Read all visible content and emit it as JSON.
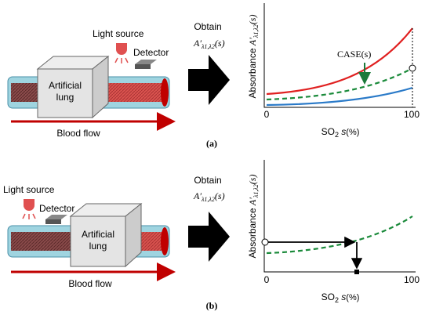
{
  "panels": [
    {
      "id": "(a)",
      "device": {
        "light_source": "Light source",
        "detector": "Detector",
        "lung": [
          "Artificial",
          "lung"
        ],
        "flow": "Blood flow"
      },
      "step": {
        "verb": "Obtain",
        "symbol": "A′",
        "subscript": "λ1,λ2",
        "arg": "(s)"
      },
      "plot": {
        "y_label": {
          "text": "Absorbance",
          "symbol": "A′",
          "subscript": "λ1,λ2",
          "arg": "(s)"
        },
        "x_label": {
          "text": "SO",
          "subscript": "2",
          "var": "s",
          "unit": "(%)"
        },
        "x_ticks": [
          "0",
          "100"
        ],
        "annotation": "CASE(s)"
      }
    },
    {
      "id": "(b)",
      "device": {
        "light_source": "Light source",
        "detector": "Detector",
        "lung": [
          "Artificial",
          "lung"
        ],
        "flow": "Blood flow"
      },
      "step": {
        "verb": "Obtain",
        "symbol": "A′",
        "subscript": "λ1,λ2",
        "arg": "(s)"
      },
      "plot": {
        "y_label": {
          "text": "Absorbance",
          "symbol": "A′",
          "subscript": "λ1,λ2",
          "arg": "(s)"
        },
        "x_label": {
          "text": "SO",
          "subscript": "2",
          "var": "s",
          "unit": "(%)"
        },
        "x_ticks": [
          "0",
          "100"
        ]
      }
    }
  ]
}
